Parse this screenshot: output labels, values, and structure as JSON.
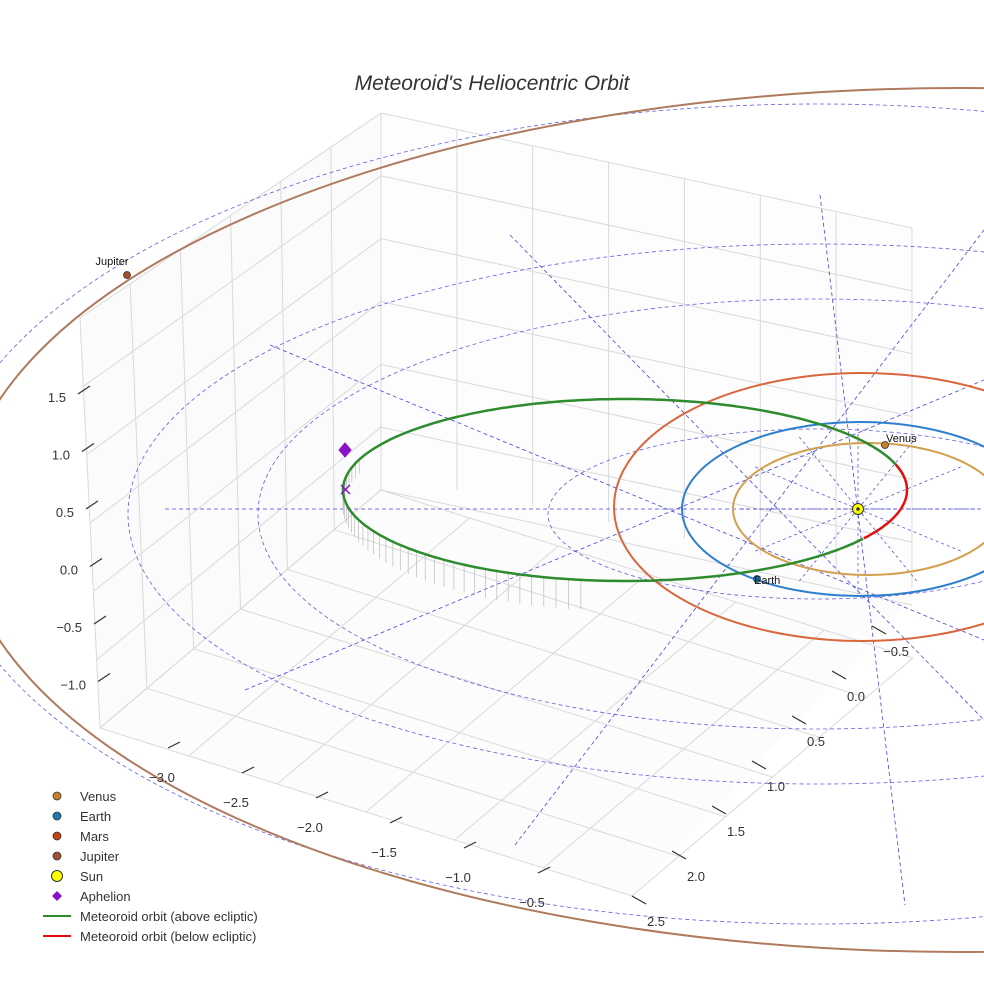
{
  "chart_data": {
    "type": "scatter",
    "subtype": "3d-orbit-plot",
    "title": "Meteoroid's Heliocentric Orbit",
    "axes": {
      "x": {
        "label": "",
        "ticks": [
          "−3.0",
          "−2.5",
          "−2.0",
          "−1.5",
          "−1.0",
          "−0.5"
        ],
        "range": [
          -3.3,
          -0.3
        ]
      },
      "y": {
        "label": "",
        "ticks": [
          "−0.5",
          "0.0",
          "0.5",
          "1.0",
          "1.5",
          "2.0",
          "2.5"
        ],
        "range": [
          -0.7,
          2.6
        ]
      },
      "z": {
        "label": "",
        "ticks": [
          "1.5",
          "1.0",
          "0.5",
          "0.0",
          "−0.5",
          "−1.0"
        ],
        "range": [
          -1.2,
          1.9
        ]
      },
      "grid": true
    },
    "bodies": [
      {
        "name": "Venus",
        "label": "Venus",
        "color": "#c8832a",
        "orbit_color": "#d2a04f"
      },
      {
        "name": "Earth",
        "label": "Earth",
        "color": "#1f77b4",
        "orbit_color": "#2f7fcf"
      },
      {
        "name": "Mars",
        "label": "",
        "color": "#c1440e",
        "orbit_color": "#d9663c"
      },
      {
        "name": "Jupiter",
        "label": "Jupiter",
        "color": "#a0522d",
        "orbit_color": "#b07a5e"
      }
    ],
    "sun": {
      "name": "Sun",
      "color": "#ffff00"
    },
    "aphelion": {
      "name": "Aphelion",
      "color": "#8a13c9",
      "z_value": 0.9
    },
    "meteoroid_orbit": {
      "above_ecliptic": {
        "name": "Meteoroid orbit (above ecliptic)",
        "color": "#2e8b2e"
      },
      "below_ecliptic": {
        "name": "Meteoroid orbit (below ecliptic)",
        "color": "#e01010"
      }
    },
    "ecliptic_grid_color": "#4444dd",
    "legend": {
      "placement": "bottom-left",
      "entries": [
        {
          "label": "Venus",
          "marker": "circle",
          "color": "#c8832a"
        },
        {
          "label": "Earth",
          "marker": "circle",
          "color": "#1f77b4"
        },
        {
          "label": "Mars",
          "marker": "circle",
          "color": "#c1440e"
        },
        {
          "label": "Jupiter",
          "marker": "circle",
          "color": "#a0522d"
        },
        {
          "label": "Sun",
          "marker": "big-circle",
          "color": "#ffff00"
        },
        {
          "label": "Aphelion",
          "marker": "diamond",
          "color": "#8a13c9"
        },
        {
          "label": "Meteoroid orbit (above ecliptic)",
          "marker": "line",
          "color": "#2e8b2e"
        },
        {
          "label": "Meteoroid orbit (below ecliptic)",
          "marker": "line",
          "color": "#e01010"
        }
      ]
    }
  }
}
